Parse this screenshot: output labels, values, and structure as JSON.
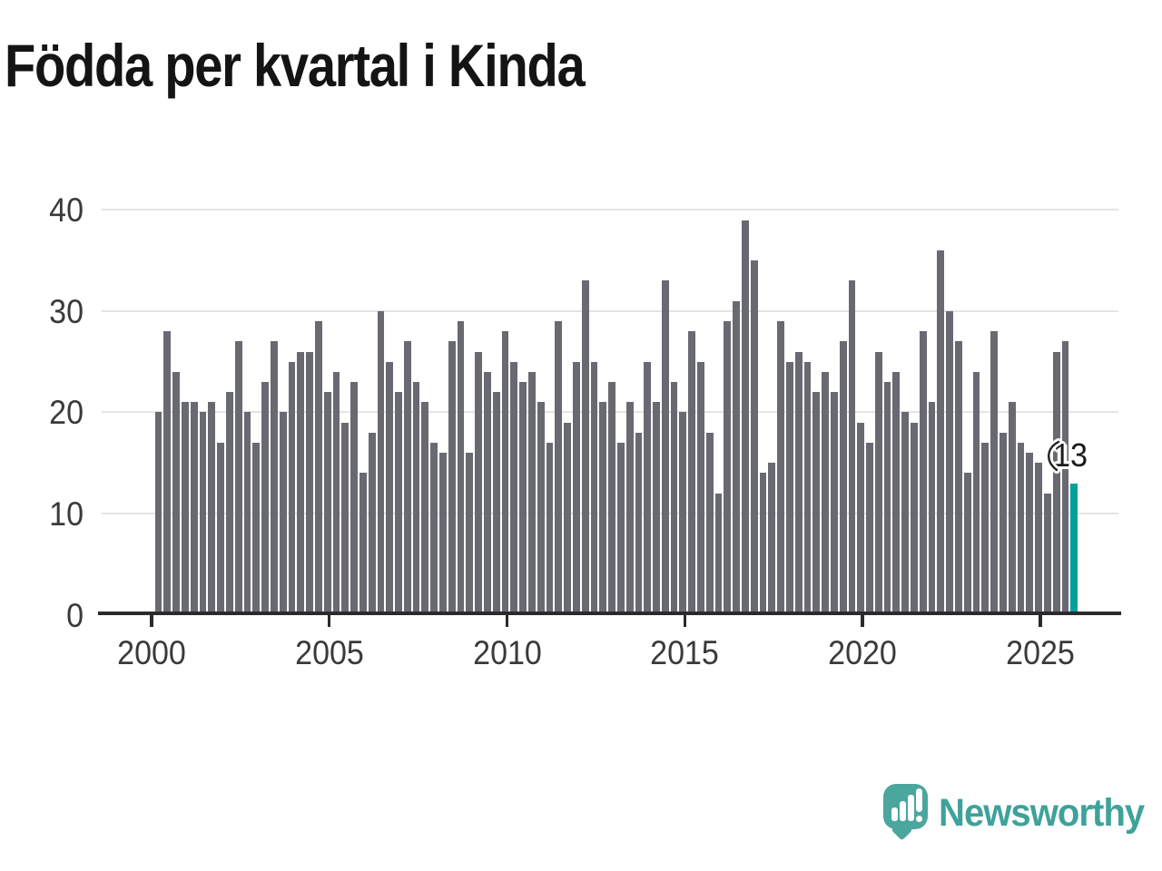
{
  "title": "Födda per kvartal i Kinda",
  "annotation": {
    "text": "13"
  },
  "logo": {
    "text": "Newsworthy",
    "icon": "newsworthy-speech-bubble-chart-icon",
    "color": "#4ba69e"
  },
  "chart_data": {
    "type": "bar",
    "title": "Födda per kvartal i Kinda",
    "xlabel": "",
    "ylabel": "",
    "x_tick_labels": [
      "2000",
      "2005",
      "2010",
      "2015",
      "2020",
      "2025"
    ],
    "y_tick_labels": [
      "0",
      "10",
      "20",
      "30",
      "40"
    ],
    "y_ticks": [
      0,
      10,
      20,
      30,
      40
    ],
    "ylim": [
      0,
      42
    ],
    "grid": true,
    "legend_position": "none",
    "bar_color": "#696972",
    "highlight_color": "#00a19a",
    "highlight_quarter": "2025-Q4",
    "highlight_value": 13,
    "annotation_text": "13",
    "quarters_start": "2000-Q1",
    "quarters_end": "2025-Q4",
    "series": [
      {
        "year": 2000,
        "values": [
          20,
          28,
          24,
          21
        ]
      },
      {
        "year": 2001,
        "values": [
          21,
          20,
          21,
          17
        ]
      },
      {
        "year": 2002,
        "values": [
          22,
          27,
          20,
          17
        ]
      },
      {
        "year": 2003,
        "values": [
          23,
          27,
          20,
          25
        ]
      },
      {
        "year": 2004,
        "values": [
          26,
          26,
          29,
          22
        ]
      },
      {
        "year": 2005,
        "values": [
          24,
          19,
          23,
          14
        ]
      },
      {
        "year": 2006,
        "values": [
          18,
          30,
          25,
          22
        ]
      },
      {
        "year": 2007,
        "values": [
          27,
          23,
          21,
          17
        ]
      },
      {
        "year": 2008,
        "values": [
          16,
          27,
          29,
          16
        ]
      },
      {
        "year": 2009,
        "values": [
          26,
          24,
          22,
          28
        ]
      },
      {
        "year": 2010,
        "values": [
          25,
          23,
          24,
          21
        ]
      },
      {
        "year": 2011,
        "values": [
          17,
          29,
          19,
          25
        ]
      },
      {
        "year": 2012,
        "values": [
          33,
          25,
          21,
          23
        ]
      },
      {
        "year": 2013,
        "values": [
          17,
          21,
          18,
          25
        ]
      },
      {
        "year": 2014,
        "values": [
          21,
          33,
          23,
          20
        ]
      },
      {
        "year": 2015,
        "values": [
          28,
          25,
          18,
          12
        ]
      },
      {
        "year": 2016,
        "values": [
          29,
          31,
          39,
          35
        ]
      },
      {
        "year": 2017,
        "values": [
          14,
          15,
          29,
          25
        ]
      },
      {
        "year": 2018,
        "values": [
          26,
          25,
          22,
          24
        ]
      },
      {
        "year": 2019,
        "values": [
          22,
          27,
          33,
          19
        ]
      },
      {
        "year": 2020,
        "values": [
          17,
          26,
          23,
          24
        ]
      },
      {
        "year": 2021,
        "values": [
          20,
          19,
          28,
          21
        ]
      },
      {
        "year": 2022,
        "values": [
          36,
          30,
          27,
          14
        ]
      },
      {
        "year": 2023,
        "values": [
          24,
          17,
          28,
          18
        ]
      },
      {
        "year": 2024,
        "values": [
          21,
          17,
          16,
          15
        ]
      },
      {
        "year": 2025,
        "values": [
          12,
          26,
          27,
          13
        ]
      }
    ]
  }
}
